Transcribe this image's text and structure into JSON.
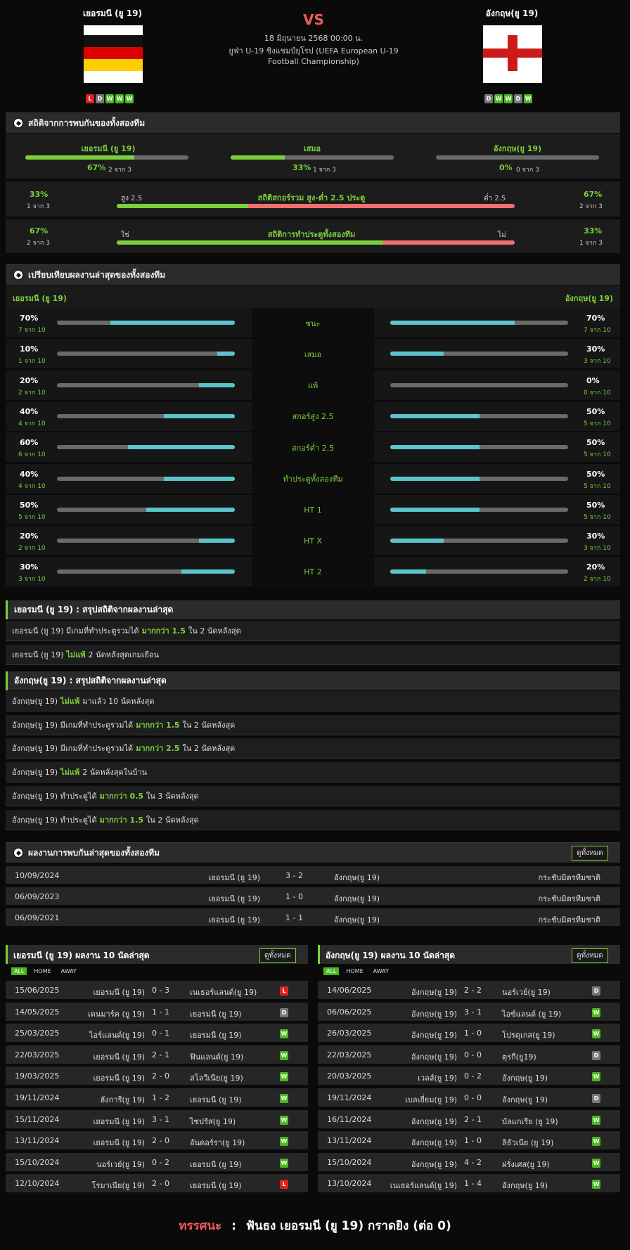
{
  "match": {
    "home": "เยอรมนี (ยู 19)",
    "away": "อังกฤษ(ยู 19)",
    "vs": "VS",
    "datetime": "18 มิถุนายน 2568 00:00 น.",
    "competition_line1": "ยูฟ่า U-19 ชิงแชมป์ยุโรป (UEFA European U-19",
    "competition_line2": "Football Championship)",
    "home_form": [
      "L",
      "D",
      "W",
      "W",
      "W"
    ],
    "away_form": [
      "D",
      "W",
      "W",
      "D",
      "W"
    ]
  },
  "h2h_stats": {
    "title": "สถิติจากการพบกันของทั้งสองทีม",
    "home_label": "เยอรมนี (ยู 19)",
    "draw_label": "เสมอ",
    "away_label": "อังกฤษ(ยู 19)",
    "home_pct": "67%",
    "home_of": "2 จาก 3",
    "draw_pct": "33%",
    "draw_of": "1 จาก 3",
    "away_pct": "0%",
    "away_of": "0 จาก 3",
    "home_frac": 0.67,
    "draw_frac": 0.33,
    "away_frac": 0,
    "ou": {
      "left_pct": "33%",
      "left_of": "1 จาก 3",
      "title": "สถิติสกอร์รวม สูง-ต่ำ 2.5 ประตู",
      "over": "สูง 2.5",
      "under": "ต่ำ 2.5",
      "right_pct": "67%",
      "right_of": "2 จาก 3",
      "frac": 0.33
    },
    "btts": {
      "left_pct": "67%",
      "left_of": "2 จาก 3",
      "title": "สถิติการทำประตูทั้งสองทีม",
      "yes": "ใช่",
      "no": "ไม่",
      "right_pct": "33%",
      "right_of": "1 จาก 3",
      "frac": 0.67
    }
  },
  "compare": {
    "title": "เปรียบเทียบผลงานล่าสุดของทั้งสองทีม",
    "home": "เยอรมนี (ยู 19)",
    "away": "อังกฤษ(ยู 19)",
    "rows": [
      {
        "label": "ชนะ",
        "hp": "70%",
        "ho": "7 จาก 10",
        "hf": 0.7,
        "ap": "70%",
        "ao": "7 จาก 10",
        "af": 0.7
      },
      {
        "label": "เสมอ",
        "hp": "10%",
        "ho": "1 จาก 10",
        "hf": 0.1,
        "ap": "30%",
        "ao": "3 จาก 10",
        "af": 0.3
      },
      {
        "label": "แพ้",
        "hp": "20%",
        "ho": "2 จาก 10",
        "hf": 0.2,
        "ap": "0%",
        "ao": "0 จาก 10",
        "af": 0
      },
      {
        "label": "สกอร์สูง 2.5",
        "hp": "40%",
        "ho": "4 จาก 10",
        "hf": 0.4,
        "ap": "50%",
        "ao": "5 จาก 10",
        "af": 0.5
      },
      {
        "label": "สกอร์ต่ำ 2.5",
        "hp": "60%",
        "ho": "6 จาก 10",
        "hf": 0.6,
        "ap": "50%",
        "ao": "5 จาก 10",
        "af": 0.5
      },
      {
        "label": "ทำประตูทั้งสองทีม",
        "hp": "40%",
        "ho": "4 จาก 10",
        "hf": 0.4,
        "ap": "50%",
        "ao": "5 จาก 10",
        "af": 0.5
      },
      {
        "label": "HT 1",
        "hp": "50%",
        "ho": "5 จาก 10",
        "hf": 0.5,
        "ap": "50%",
        "ao": "5 จาก 10",
        "af": 0.5
      },
      {
        "label": "HT X",
        "hp": "20%",
        "ho": "2 จาก 10",
        "hf": 0.2,
        "ap": "30%",
        "ao": "3 จาก 10",
        "af": 0.3
      },
      {
        "label": "HT 2",
        "hp": "30%",
        "ho": "3 จาก 10",
        "hf": 0.3,
        "ap": "20%",
        "ao": "2 จาก 10",
        "af": 0.2
      }
    ]
  },
  "home_summary": {
    "title": "เยอรมนี (ยู 19) : สรุปสถิติจากผลงานล่าสุด",
    "rows": [
      {
        "pre": "เยอรมนี (ยู 19)  มีเกมที่ทำประตูรวมได้",
        "hl": "มากกว่า  1.5",
        "post": "ใน 2 นัดหลังสุด"
      },
      {
        "pre": "เยอรมนี (ยู 19)",
        "hl": "ไม่แพ้",
        "post": "2  นัดหลังสุดเกมเยือน"
      }
    ]
  },
  "away_summary": {
    "title": "อังกฤษ(ยู 19) : สรุปสถิติจากผลงานล่าสุด",
    "rows": [
      {
        "pre": "อังกฤษ(ยู 19)",
        "hl": "ไม่แพ้",
        "post": "มาแล้ว 10 นัดหลังสุด"
      },
      {
        "pre": "อังกฤษ(ยู 19)  มีเกมที่ทำประตูรวมได้",
        "hl": "มากกว่า  1.5",
        "post": "ใน 2 นัดหลังสุด"
      },
      {
        "pre": "อังกฤษ(ยู 19)  มีเกมที่ทำประตูรวมได้",
        "hl": "มากกว่า  2.5",
        "post": "ใน 2 นัดหลังสุด"
      },
      {
        "pre": "อังกฤษ(ยู 19)",
        "hl": "ไม่แพ้",
        "post": "2  นัดหลังสุดในบ้าน"
      },
      {
        "pre": "อังกฤษ(ยู 19)  ทำประตูได้",
        "hl": "มากกว่า  0.5",
        "post": "ใน 3 นัดหลังสุด"
      },
      {
        "pre": "อังกฤษ(ยู 19)  ทำประตูได้",
        "hl": "มากกว่า  1.5",
        "post": "ใน 2 นัดหลังสุด"
      }
    ]
  },
  "h2h_results": {
    "title": "ผลงานการพบกันล่าสุดของทั้งสองทีม",
    "view_all": "ดูทั้งหมด",
    "rows": [
      {
        "date": "10/09/2024",
        "home": "เยอรมนี (ยู 19)",
        "score": "3 - 2",
        "away": "อังกฤษ(ยู 19)",
        "comp": "กระชับมิตรทีมชาติ"
      },
      {
        "date": "06/09/2023",
        "home": "เยอรมนี (ยู 19)",
        "score": "1 - 0",
        "away": "อังกฤษ(ยู 19)",
        "comp": "กระชับมิตรทีมชาติ"
      },
      {
        "date": "06/09/2021",
        "home": "เยอรมนี (ยู 19)",
        "score": "1 - 1",
        "away": "อังกฤษ(ยู 19)",
        "comp": "กระชับมิตรทีมชาติ"
      }
    ]
  },
  "home_last10": {
    "title": "เยอรมนี (ยู 19) ผลงาน 10 นัดล่าสุด",
    "view_all": "ดูทั้งหมด",
    "tabs": [
      "ALL",
      "HOME",
      "AWAY"
    ],
    "rows": [
      {
        "date": "15/06/2025",
        "home": "เยอรมนี (ยู 19)",
        "score": "0 - 3",
        "away": "เนเธอร์แลนด์(ยู 19)",
        "res": "L"
      },
      {
        "date": "14/05/2025",
        "home": "เดนมาร์ค (ยู 19)",
        "score": "1 - 1",
        "away": "เยอรมนี (ยู 19)",
        "res": "D"
      },
      {
        "date": "25/03/2025",
        "home": "ไอร์แลนด์(ยู 19)",
        "score": "0 - 1",
        "away": "เยอรมนี (ยู 19)",
        "res": "W"
      },
      {
        "date": "22/03/2025",
        "home": "เยอรมนี (ยู 19)",
        "score": "2 - 1",
        "away": "ฟินแลนด์(ยู 19)",
        "res": "W"
      },
      {
        "date": "19/03/2025",
        "home": "เยอรมนี (ยู 19)",
        "score": "2 - 0",
        "away": "สโลวีเนีย(ยู 19)",
        "res": "W"
      },
      {
        "date": "19/11/2024",
        "home": "ฮังการี(ยู 19)",
        "score": "1 - 2",
        "away": "เยอรมนี (ยู 19)",
        "res": "W"
      },
      {
        "date": "15/11/2024",
        "home": "เยอรมนี (ยู 19)",
        "score": "3 - 1",
        "away": "ไซปรัส(ยู 19)",
        "res": "W"
      },
      {
        "date": "13/11/2024",
        "home": "เยอรมนี (ยู 19)",
        "score": "2 - 0",
        "away": "อันดอร์รา(ยู 19)",
        "res": "W"
      },
      {
        "date": "15/10/2024",
        "home": "นอร์เวย์(ยู 19)",
        "score": "0 - 2",
        "away": "เยอรมนี (ยู 19)",
        "res": "W"
      },
      {
        "date": "12/10/2024",
        "home": "โรมาเนีย(ยู 19)",
        "score": "2 - 0",
        "away": "เยอรมนี (ยู 19)",
        "res": "L"
      }
    ]
  },
  "away_last10": {
    "title": "อังกฤษ(ยู 19) ผลงาน 10 นัดล่าสุด",
    "view_all": "ดูทั้งหมด",
    "tabs": [
      "ALL",
      "HOME",
      "AWAY"
    ],
    "rows": [
      {
        "date": "14/06/2025",
        "home": "อังกฤษ(ยู 19)",
        "score": "2 - 2",
        "away": "นอร์เวย์(ยู 19)",
        "res": "D"
      },
      {
        "date": "06/06/2025",
        "home": "อังกฤษ(ยู 19)",
        "score": "3 - 1",
        "away": "ไอซ์แลนด์ (ยู 19)",
        "res": "W"
      },
      {
        "date": "26/03/2025",
        "home": "อังกฤษ(ยู 19)",
        "score": "1 - 0",
        "away": "โปรตุเกส(ยู 19)",
        "res": "W"
      },
      {
        "date": "22/03/2025",
        "home": "อังกฤษ(ยู 19)",
        "score": "0 - 0",
        "away": "ตุรกี(ยู19)",
        "res": "D"
      },
      {
        "date": "20/03/2025",
        "home": "เวลส์(ยู 19)",
        "score": "0 - 2",
        "away": "อังกฤษ(ยู 19)",
        "res": "W"
      },
      {
        "date": "19/11/2024",
        "home": "เบลเยี่ยม(ยู 19)",
        "score": "0 - 0",
        "away": "อังกฤษ(ยู 19)",
        "res": "D"
      },
      {
        "date": "16/11/2024",
        "home": "อังกฤษ(ยู 19)",
        "score": "2 - 1",
        "away": "บัลแกเรีย  (ยู 19)",
        "res": "W"
      },
      {
        "date": "13/11/2024",
        "home": "อังกฤษ(ยู 19)",
        "score": "1 - 0",
        "away": "ลิธัวเนีย (ยู 19)",
        "res": "W"
      },
      {
        "date": "15/10/2024",
        "home": "อังกฤษ(ยู 19)",
        "score": "4 - 2",
        "away": "ฝรั่งเศส(ยู 19)",
        "res": "W"
      },
      {
        "date": "13/10/2024",
        "home": "เนเธอร์แลนด์(ยู 19)",
        "score": "1 - 4",
        "away": "อังกฤษ(ยู 19)",
        "res": "W"
      }
    ]
  },
  "prediction": {
    "label": "ทรรศนะ",
    "sep": ":",
    "text": "ฟันธง เยอรมนี (ยู 19) กราดยิง (ต่อ 0)"
  },
  "colors": {
    "accent": "#7bd03b",
    "teal": "#5cc4cc",
    "red": "#f07070",
    "win": "#4bb81f",
    "lose": "#e02020",
    "draw": "#777777"
  }
}
